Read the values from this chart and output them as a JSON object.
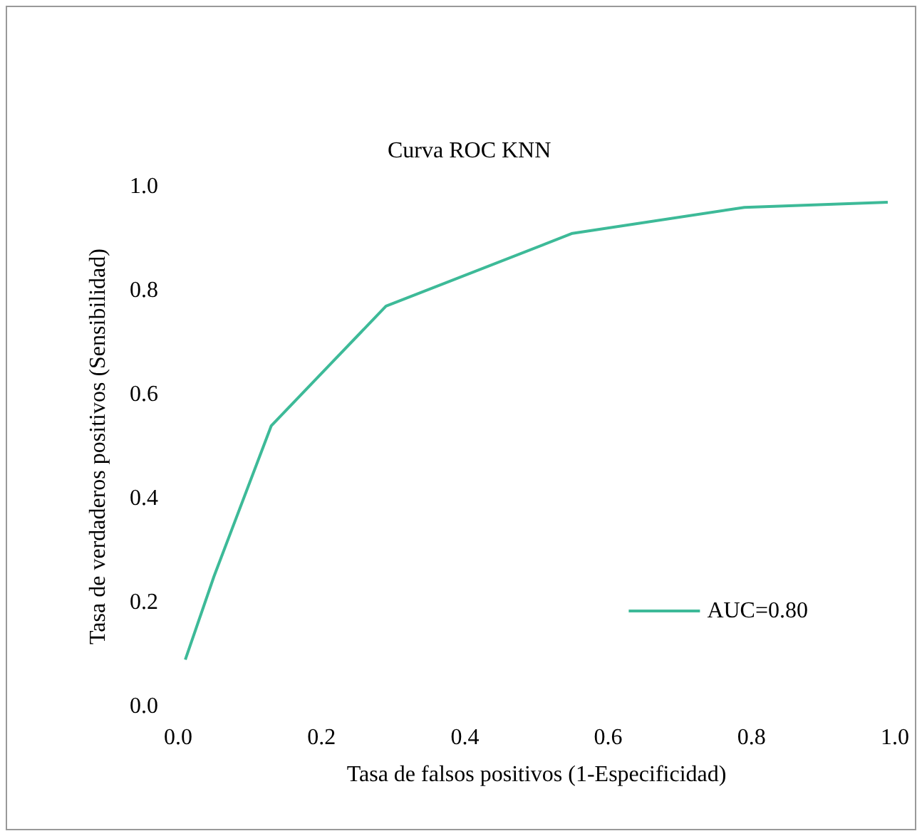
{
  "chart_data": {
    "type": "line",
    "title": "Curva ROC KNN",
    "xlabel": "Tasa de falsos positivos (1-Especificidad)",
    "ylabel": "Tasa de verdaderos positivos (Sensibilidad)",
    "x": [
      0.01,
      0.05,
      0.13,
      0.29,
      0.55,
      0.79,
      0.99
    ],
    "series": [
      {
        "name": "AUC=0.80",
        "color": "#3dba98",
        "values": [
          0.09,
          0.25,
          0.54,
          0.77,
          0.91,
          0.96,
          0.97
        ]
      }
    ],
    "xlim": [
      0,
      1
    ],
    "xticks": [
      {
        "value": 0,
        "label": "0.0"
      },
      0.2,
      0.4,
      0.6,
      0.8,
      {
        "value": 1,
        "label": "1.0"
      }
    ],
    "ylim": [
      0,
      1
    ],
    "yticks": [
      {
        "value": 0,
        "label": "0.0"
      },
      0.2,
      0.4,
      0.6,
      0.8,
      {
        "value": 1,
        "label": "1.0"
      }
    ],
    "grid": false,
    "legend": "bottom right",
    "marker": "none",
    "line_style": "solid"
  }
}
